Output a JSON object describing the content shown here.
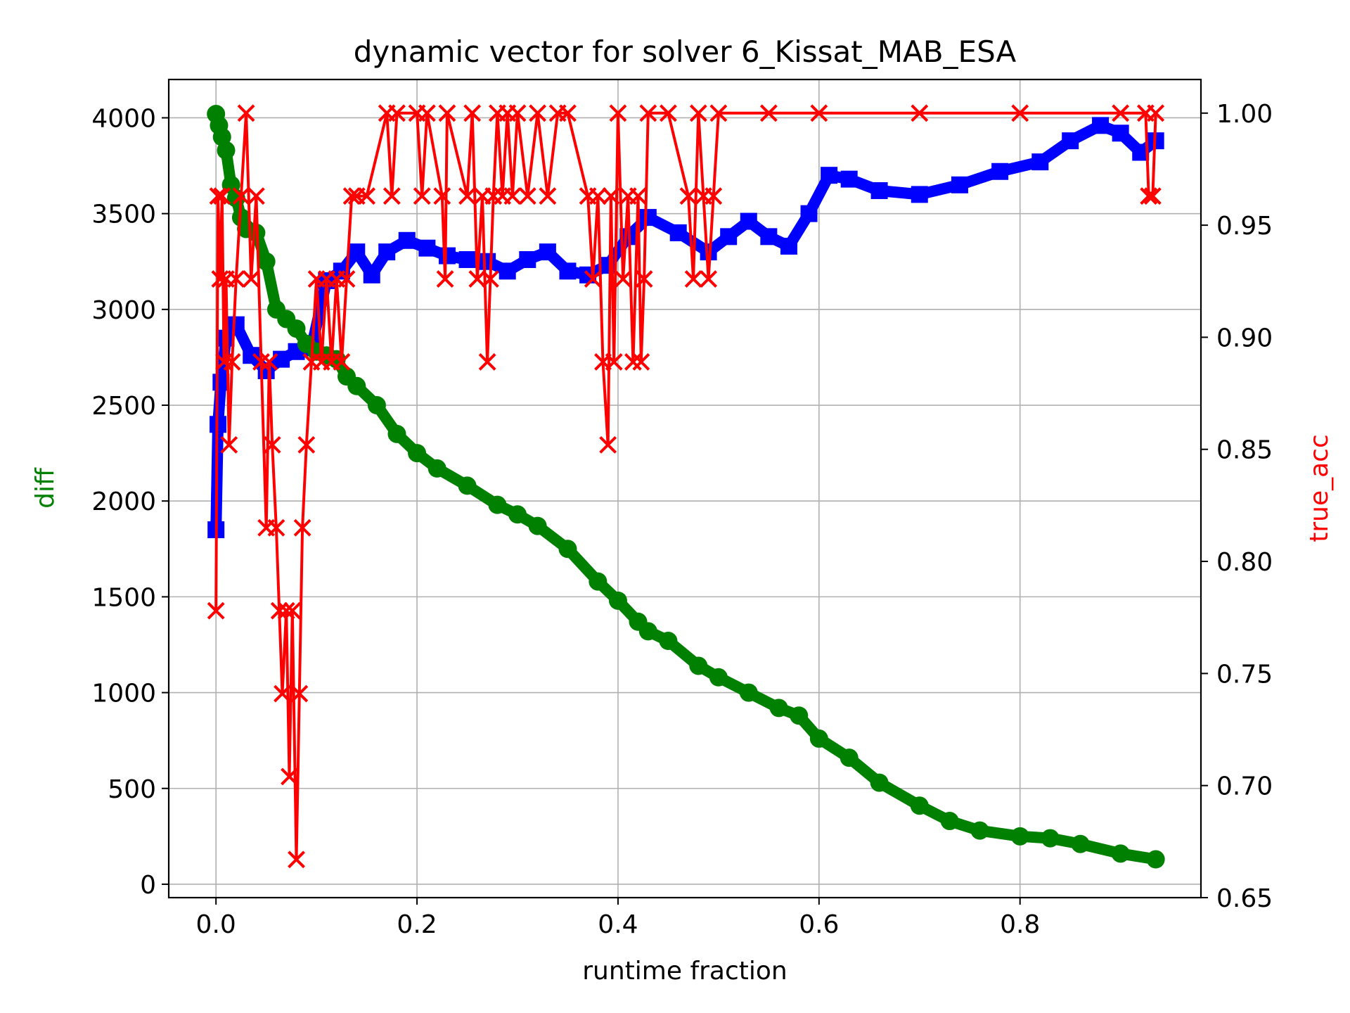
{
  "chart_data": {
    "type": "line",
    "title": "dynamic vector for solver 6_Kissat_MAB_ESA",
    "xlabel": "runtime fraction",
    "ylabel": "diff",
    "ylabel_right": "true_acc",
    "xlim": [
      -0.047,
      0.98
    ],
    "ylim": [
      -70,
      4200
    ],
    "ylim_right": [
      0.65,
      1.015
    ],
    "grid": true,
    "x_ticks": [
      "0.0",
      "0.2",
      "0.4",
      "0.6",
      "0.8"
    ],
    "x_tick_values": [
      0,
      0.2,
      0.4,
      0.6,
      0.8
    ],
    "y_ticks": [
      "0",
      "500",
      "1000",
      "1500",
      "2000",
      "2500",
      "3000",
      "3500",
      "4000"
    ],
    "y_tick_values": [
      0,
      500,
      1000,
      1500,
      2000,
      2500,
      3000,
      3500,
      4000
    ],
    "y_right_ticks": [
      "0.65",
      "0.70",
      "0.75",
      "0.80",
      "0.85",
      "0.90",
      "0.95",
      "1.00"
    ],
    "y_right_tick_values": [
      0.65,
      0.7,
      0.75,
      0.8,
      0.85,
      0.9,
      0.95,
      1.0
    ],
    "colors": {
      "diff": "#008000",
      "blue_series": "#0000ff",
      "true_acc": "#ff0000"
    },
    "series": [
      {
        "axis": "left",
        "marker": "circle",
        "color": "#008000",
        "x": [
          0,
          0.003,
          0.006,
          0.01,
          0.015,
          0.02,
          0.025,
          0.03,
          0.04,
          0.05,
          0.06,
          0.07,
          0.08,
          0.09,
          0.1,
          0.11,
          0.12,
          0.13,
          0.14,
          0.16,
          0.18,
          0.2,
          0.22,
          0.25,
          0.28,
          0.3,
          0.32,
          0.35,
          0.38,
          0.4,
          0.42,
          0.43,
          0.45,
          0.48,
          0.5,
          0.53,
          0.56,
          0.58,
          0.6,
          0.63,
          0.66,
          0.7,
          0.73,
          0.76,
          0.8,
          0.83,
          0.86,
          0.9,
          0.935
        ],
        "y": [
          4020,
          3960,
          3900,
          3830,
          3650,
          3580,
          3480,
          3420,
          3400,
          3250,
          3000,
          2950,
          2900,
          2820,
          2780,
          2760,
          2740,
          2650,
          2600,
          2500,
          2350,
          2250,
          2170,
          2080,
          1980,
          1930,
          1870,
          1750,
          1580,
          1480,
          1370,
          1320,
          1270,
          1140,
          1080,
          1000,
          920,
          880,
          760,
          660,
          530,
          410,
          330,
          280,
          250,
          240,
          210,
          160,
          130
        ]
      },
      {
        "axis": "left",
        "marker": "square",
        "color": "#0000ff",
        "x": [
          0,
          0.002,
          0.005,
          0.01,
          0.02,
          0.035,
          0.05,
          0.065,
          0.08,
          0.095,
          0.11,
          0.125,
          0.14,
          0.155,
          0.17,
          0.19,
          0.21,
          0.23,
          0.25,
          0.27,
          0.29,
          0.31,
          0.33,
          0.35,
          0.37,
          0.39,
          0.41,
          0.43,
          0.46,
          0.49,
          0.51,
          0.53,
          0.55,
          0.57,
          0.59,
          0.61,
          0.63,
          0.66,
          0.7,
          0.74,
          0.78,
          0.82,
          0.85,
          0.88,
          0.9,
          0.92,
          0.935
        ],
        "y": [
          1850,
          2400,
          2620,
          2850,
          2920,
          2760,
          2680,
          2740,
          2780,
          2800,
          3150,
          3200,
          3300,
          3180,
          3300,
          3360,
          3320,
          3280,
          3260,
          3250,
          3200,
          3260,
          3300,
          3200,
          3180,
          3230,
          3380,
          3480,
          3400,
          3300,
          3380,
          3460,
          3380,
          3330,
          3500,
          3700,
          3680,
          3620,
          3600,
          3650,
          3720,
          3770,
          3880,
          3960,
          3920,
          3820,
          3880
        ]
      },
      {
        "axis": "right",
        "marker": "x",
        "color": "#ff0000",
        "x": [
          0,
          0.002,
          0.004,
          0.006,
          0.008,
          0.01,
          0.013,
          0.016,
          0.02,
          0.025,
          0.03,
          0.035,
          0.04,
          0.045,
          0.05,
          0.053,
          0.056,
          0.06,
          0.063,
          0.066,
          0.07,
          0.073,
          0.076,
          0.08,
          0.083,
          0.086,
          0.09,
          0.095,
          0.1,
          0.105,
          0.11,
          0.115,
          0.12,
          0.125,
          0.13,
          0.135,
          0.14,
          0.15,
          0.17,
          0.175,
          0.18,
          0.2,
          0.205,
          0.21,
          0.225,
          0.228,
          0.23,
          0.25,
          0.255,
          0.26,
          0.265,
          0.27,
          0.273,
          0.276,
          0.28,
          0.285,
          0.29,
          0.295,
          0.3,
          0.31,
          0.32,
          0.33,
          0.34,
          0.35,
          0.37,
          0.375,
          0.38,
          0.385,
          0.39,
          0.393,
          0.396,
          0.4,
          0.405,
          0.41,
          0.415,
          0.42,
          0.423,
          0.426,
          0.43,
          0.45,
          0.47,
          0.475,
          0.48,
          0.485,
          0.49,
          0.495,
          0.5,
          0.55,
          0.6,
          0.7,
          0.8,
          0.9,
          0.925,
          0.928,
          0.932,
          0.935
        ],
        "y": [
          0.778,
          0.963,
          0.926,
          0.963,
          0.889,
          0.926,
          0.852,
          0.889,
          0.926,
          0.963,
          1.0,
          0.926,
          0.963,
          0.889,
          0.815,
          0.889,
          0.852,
          0.815,
          0.778,
          0.741,
          0.778,
          0.704,
          0.778,
          0.667,
          0.741,
          0.815,
          0.852,
          0.889,
          0.926,
          0.889,
          0.926,
          0.889,
          0.926,
          0.889,
          0.926,
          0.963,
          0.963,
          0.963,
          1.0,
          0.963,
          1.0,
          1.0,
          0.963,
          1.0,
          0.963,
          0.926,
          1.0,
          0.963,
          1.0,
          0.926,
          0.963,
          0.889,
          0.926,
          0.963,
          1.0,
          0.963,
          1.0,
          0.963,
          1.0,
          0.963,
          1.0,
          0.963,
          1.0,
          1.0,
          0.963,
          0.926,
          0.963,
          0.889,
          0.852,
          0.963,
          0.889,
          1.0,
          0.926,
          0.963,
          0.889,
          0.963,
          0.889,
          0.926,
          1.0,
          1.0,
          0.963,
          0.926,
          1.0,
          0.963,
          0.926,
          0.963,
          1.0,
          1.0,
          1.0,
          1.0,
          1.0,
          1.0,
          1.0,
          0.963,
          0.963,
          1.0
        ]
      }
    ]
  }
}
